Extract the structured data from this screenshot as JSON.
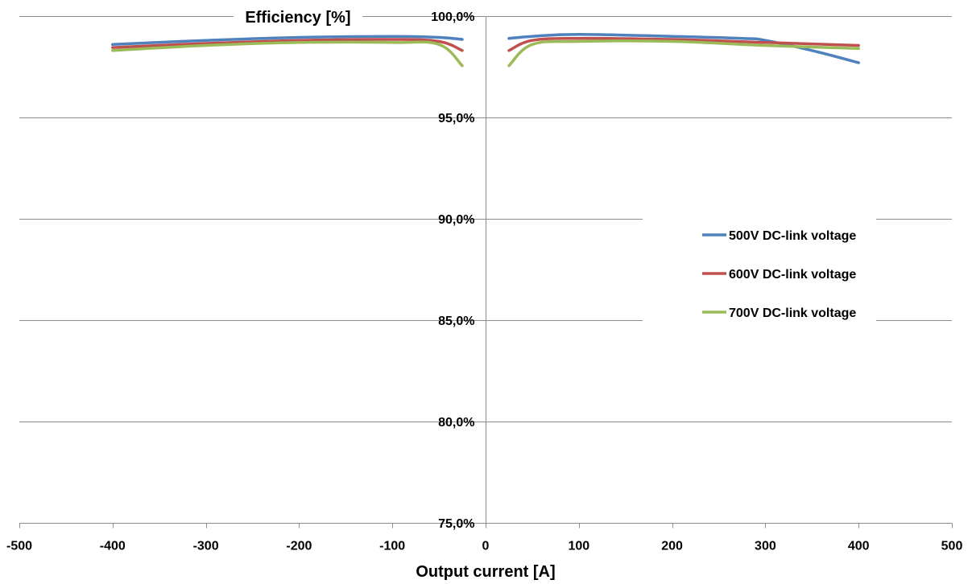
{
  "chart_data": {
    "type": "line",
    "title": "Efficiency [%]",
    "xlabel": "Output current [A]",
    "ylabel": "",
    "xlim": [
      -500,
      500
    ],
    "ylim": [
      75,
      100
    ],
    "x_ticks": [
      "-500",
      "-400",
      "-300",
      "-200",
      "-100",
      "0",
      "100",
      "200",
      "300",
      "400",
      "500"
    ],
    "y_ticks": [
      "75,0%",
      "80,0%",
      "85,0%",
      "90,0%",
      "95,0%",
      "100,0%"
    ],
    "grid": true,
    "legend_position": "right",
    "series": [
      {
        "name": "500V DC-link voltage",
        "color": "#4F81BD",
        "segments": [
          {
            "x": [
              -400,
              -300,
              -200,
              -100,
              -50,
              -25
            ],
            "y": [
              98.6,
              98.8,
              98.95,
              99.0,
              98.95,
              98.85
            ]
          },
          {
            "x": [
              25,
              50,
              100,
              200,
              275,
              300,
              350,
              400
            ],
            "y": [
              98.9,
              99.0,
              99.1,
              99.0,
              98.9,
              98.8,
              98.3,
              97.7
            ]
          }
        ]
      },
      {
        "name": "600V DC-link voltage",
        "color": "#C0504D",
        "segments": [
          {
            "x": [
              -400,
              -300,
              -200,
              -100,
              -50,
              -25
            ],
            "y": [
              98.45,
              98.65,
              98.8,
              98.85,
              98.75,
              98.3
            ]
          },
          {
            "x": [
              25,
              50,
              100,
              200,
              300,
              400
            ],
            "y": [
              98.3,
              98.8,
              98.9,
              98.85,
              98.7,
              98.55
            ]
          }
        ]
      },
      {
        "name": "700V DC-link voltage",
        "color": "#9BBB59",
        "segments": [
          {
            "x": [
              -400,
              -300,
              -200,
              -100,
              -50,
              -25
            ],
            "y": [
              98.3,
              98.55,
              98.7,
              98.7,
              98.6,
              97.55
            ]
          },
          {
            "x": [
              25,
              50,
              100,
              200,
              300,
              400
            ],
            "y": [
              97.55,
              98.6,
              98.75,
              98.75,
              98.55,
              98.4
            ]
          }
        ]
      }
    ]
  }
}
